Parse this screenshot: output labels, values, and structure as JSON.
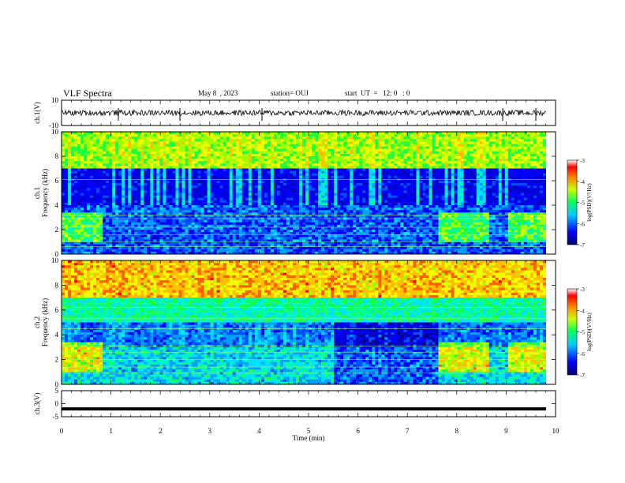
{
  "header": {
    "title": "VLF Spectra",
    "date": "May 8  , 2023",
    "station": "station= OUJ",
    "start": "start  UT  =   12: 0   : 0"
  },
  "chart_data": [
    {
      "type": "line",
      "panel": "ch1-waveform",
      "ylabel": "ch.1(V)",
      "y_ticks": [
        "10",
        "-10"
      ],
      "ylim": [
        -10,
        10
      ],
      "xlim": [
        0,
        10
      ],
      "description_values": {
        "baseline": 0,
        "noise_amplitude_approx": 2
      }
    },
    {
      "type": "heatmap",
      "panel": "ch1-spectrogram",
      "ylabel": "ch.1\nFrequency  (kHz)",
      "y_ticks": [
        "0",
        "2",
        "4",
        "6",
        "8",
        "10"
      ],
      "ylim": [
        0,
        10
      ],
      "xlim": [
        0,
        10
      ],
      "colorbar": {
        "label": "log(PSD)(V²/Hz)",
        "ticks": [
          "-3",
          "-4",
          "-5",
          "-6",
          "-7"
        ],
        "range": [
          -7,
          -3
        ]
      }
    },
    {
      "type": "heatmap",
      "panel": "ch2-spectrogram",
      "ylabel": "ch.2\nFrequency  (kHz)",
      "y_ticks": [
        "0",
        "2",
        "4",
        "6",
        "8",
        "10"
      ],
      "ylim": [
        0,
        10
      ],
      "xlim": [
        0,
        10
      ],
      "colorbar": {
        "label": "log(PSD)(V²/Hz)",
        "ticks": [
          "-3",
          "-4",
          "-5",
          "-6",
          "-7"
        ],
        "range": [
          -7,
          -3
        ]
      }
    },
    {
      "type": "line",
      "panel": "ch3-waveform",
      "ylabel": "ch.3(V)",
      "y_ticks": [
        "5",
        "0",
        "-5"
      ],
      "ylim": [
        -5,
        5
      ],
      "xlim": [
        0,
        10
      ],
      "values": [
        -2,
        -2
      ]
    }
  ],
  "x_axis": {
    "label": "Time  (min)",
    "ticks": [
      "0",
      "1",
      "2",
      "3",
      "4",
      "5",
      "6",
      "7",
      "8",
      "9",
      "10"
    ]
  },
  "colors": {
    "lo": "#000060",
    "hi": "#ff0000"
  }
}
